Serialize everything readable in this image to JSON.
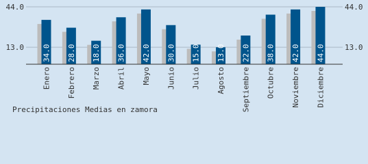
{
  "chart_data": {
    "type": "bar",
    "title": "Precipitaciones Medias en zamora",
    "categories": [
      "Enero",
      "Febrero",
      "Marzo",
      "Abril",
      "Mayo",
      "Junio",
      "Julio",
      "Agosto",
      "Septiembre",
      "Octubre",
      "Noviembre",
      "Diciembre"
    ],
    "values": [
      34,
      28,
      18,
      36,
      42,
      30,
      15,
      13,
      22,
      38,
      42,
      44
    ],
    "value_labels": [
      "34.0",
      "28.0",
      "18.0",
      "36.0",
      "42.0",
      "30.0",
      "15.0",
      "13.0",
      "22.0",
      "38.0",
      "42.0",
      "44.0"
    ],
    "color": "#00548c",
    "shadow_color": "#bcbcbc",
    "ylim": [
      0,
      44
    ],
    "yticks": [
      {
        "value": 13,
        "label": "13.0"
      },
      {
        "value": 44,
        "label": "44.0"
      }
    ],
    "grid": true
  }
}
